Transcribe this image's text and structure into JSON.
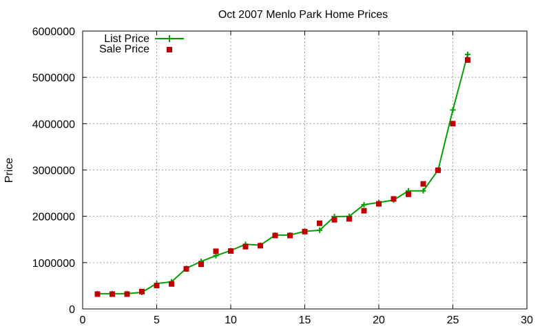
{
  "chart_data": {
    "type": "line",
    "title": "Oct 2007 Menlo Park Home Prices",
    "xlabel": "",
    "ylabel": "Price",
    "xlim": [
      0,
      30
    ],
    "ylim": [
      0,
      6000000
    ],
    "xticks": [
      0,
      5,
      10,
      15,
      20,
      25,
      30
    ],
    "yticks": [
      0,
      1000000,
      2000000,
      3000000,
      4000000,
      5000000,
      6000000
    ],
    "xtick_labels": [
      "0",
      "5",
      "10",
      "15",
      "20",
      "25",
      "30"
    ],
    "ytick_labels": [
      "0",
      "1000000",
      "2000000",
      "3000000",
      "4000000",
      "5000000",
      "6000000"
    ],
    "grid": true,
    "legend_position": "top-left",
    "x": [
      1,
      2,
      3,
      4,
      5,
      6,
      7,
      8,
      9,
      10,
      11,
      12,
      13,
      14,
      15,
      16,
      17,
      18,
      19,
      20,
      21,
      22,
      23,
      24,
      25,
      26
    ],
    "series": [
      {
        "name": "List Price",
        "style": "line-with-plus",
        "color": "#00a000",
        "values": [
          329000,
          329000,
          329000,
          359000,
          549000,
          585000,
          875000,
          1025000,
          1150000,
          1260000,
          1395000,
          1375000,
          1595000,
          1595000,
          1675000,
          1699000,
          1995000,
          1999000,
          2250000,
          2299000,
          2350000,
          2550000,
          2550000,
          2995000,
          4295000,
          5495000
        ]
      },
      {
        "name": "Sale Price",
        "style": "square-markers",
        "color": "#c00000",
        "values": [
          320000,
          320000,
          320000,
          375000,
          505000,
          540000,
          865000,
          965000,
          1245000,
          1250000,
          1345000,
          1365000,
          1585000,
          1585000,
          1670000,
          1850000,
          1925000,
          1945000,
          2120000,
          2270000,
          2375000,
          2475000,
          2700000,
          2995000,
          4000000,
          5375000
        ]
      }
    ]
  }
}
